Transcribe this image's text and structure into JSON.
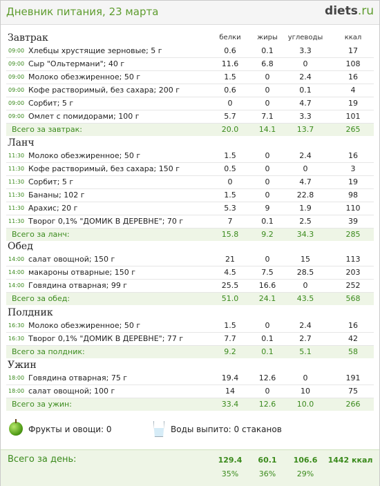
{
  "header": {
    "title": "Дневник питания, 23 марта",
    "logo_main": "diets",
    "logo_tld": ".ru"
  },
  "columns": {
    "protein": "белки",
    "fat": "жиры",
    "carbs": "углеводы",
    "kcal": "ккал"
  },
  "meals": [
    {
      "name": "Завтрак",
      "items": [
        {
          "time": "09:00",
          "food": "Хлебцы хрустящие зерновые; 5 г",
          "protein": "0.6",
          "fat": "0.1",
          "carbs": "3.3",
          "kcal": "17"
        },
        {
          "time": "09:00",
          "food": "Сыр \"Ольтермани\"; 40 г",
          "protein": "11.6",
          "fat": "6.8",
          "carbs": "0",
          "kcal": "108"
        },
        {
          "time": "09:00",
          "food": "Молоко обезжиренное; 50 г",
          "protein": "1.5",
          "fat": "0",
          "carbs": "2.4",
          "kcal": "16"
        },
        {
          "time": "09:00",
          "food": "Кофе растворимый, без сахара; 200 г",
          "protein": "0.6",
          "fat": "0",
          "carbs": "0.1",
          "kcal": "4"
        },
        {
          "time": "09:00",
          "food": "Сорбит; 5 г",
          "protein": "0",
          "fat": "0",
          "carbs": "4.7",
          "kcal": "19"
        },
        {
          "time": "09:00",
          "food": "Омлет с помидорами; 100 г",
          "protein": "5.7",
          "fat": "7.1",
          "carbs": "3.3",
          "kcal": "101"
        }
      ],
      "total": {
        "label": "Всего за завтрак:",
        "protein": "20.0",
        "fat": "14.1",
        "carbs": "13.7",
        "kcal": "265"
      }
    },
    {
      "name": "Ланч",
      "items": [
        {
          "time": "11:30",
          "food": "Молоко обезжиренное; 50 г",
          "protein": "1.5",
          "fat": "0",
          "carbs": "2.4",
          "kcal": "16"
        },
        {
          "time": "11:30",
          "food": "Кофе растворимый, без сахара; 150 г",
          "protein": "0.5",
          "fat": "0",
          "carbs": "0",
          "kcal": "3"
        },
        {
          "time": "11:30",
          "food": "Сорбит; 5 г",
          "protein": "0",
          "fat": "0",
          "carbs": "4.7",
          "kcal": "19"
        },
        {
          "time": "11:30",
          "food": "Бананы; 102 г",
          "protein": "1.5",
          "fat": "0",
          "carbs": "22.8",
          "kcal": "98"
        },
        {
          "time": "11:30",
          "food": "Арахис; 20 г",
          "protein": "5.3",
          "fat": "9",
          "carbs": "1.9",
          "kcal": "110"
        },
        {
          "time": "11:30",
          "food": "Творог 0,1% \"ДОМИК В ДЕРЕВНЕ\"; 70 г",
          "protein": "7",
          "fat": "0.1",
          "carbs": "2.5",
          "kcal": "39"
        }
      ],
      "total": {
        "label": "Всего за ланч:",
        "protein": "15.8",
        "fat": "9.2",
        "carbs": "34.3",
        "kcal": "285"
      }
    },
    {
      "name": "Обед",
      "items": [
        {
          "time": "14:00",
          "food": "салат овощной; 150 г",
          "protein": "21",
          "fat": "0",
          "carbs": "15",
          "kcal": "113"
        },
        {
          "time": "14:00",
          "food": "макароны отварные; 150 г",
          "protein": "4.5",
          "fat": "7.5",
          "carbs": "28.5",
          "kcal": "203"
        },
        {
          "time": "14:00",
          "food": "Говядина отварная; 99 г",
          "protein": "25.5",
          "fat": "16.6",
          "carbs": "0",
          "kcal": "252"
        }
      ],
      "total": {
        "label": "Всего за обед:",
        "protein": "51.0",
        "fat": "24.1",
        "carbs": "43.5",
        "kcal": "568"
      }
    },
    {
      "name": "Полдник",
      "items": [
        {
          "time": "16:30",
          "food": "Молоко обезжиренное; 50 г",
          "protein": "1.5",
          "fat": "0",
          "carbs": "2.4",
          "kcal": "16"
        },
        {
          "time": "16:30",
          "food": "Творог 0,1% \"ДОМИК В ДЕРЕВНЕ\"; 77 г",
          "protein": "7.7",
          "fat": "0.1",
          "carbs": "2.7",
          "kcal": "42"
        }
      ],
      "total": {
        "label": "Всего за полдник:",
        "protein": "9.2",
        "fat": "0.1",
        "carbs": "5.1",
        "kcal": "58"
      }
    },
    {
      "name": "Ужин",
      "items": [
        {
          "time": "18:00",
          "food": "Говядина отварная; 75 г",
          "protein": "19.4",
          "fat": "12.6",
          "carbs": "0",
          "kcal": "191"
        },
        {
          "time": "18:00",
          "food": "салат овощной; 100 г",
          "protein": "14",
          "fat": "0",
          "carbs": "10",
          "kcal": "75"
        }
      ],
      "total": {
        "label": "Всего за ужин:",
        "protein": "33.4",
        "fat": "12.6",
        "carbs": "10.0",
        "kcal": "266"
      }
    }
  ],
  "extras": {
    "fruits": "Фрукты и овощи: 0",
    "water": "Воды выпито: 0 стаканов"
  },
  "day_total": {
    "label": "Всего за день:",
    "protein": "129.4",
    "fat": "60.1",
    "carbs": "106.6",
    "kcal": "1442 ккал",
    "protein_pct": "35%",
    "fat_pct": "36%",
    "carbs_pct": "29%"
  },
  "colors": {
    "accent": "#3a8a1c",
    "total_bg": "#eef5e6"
  }
}
